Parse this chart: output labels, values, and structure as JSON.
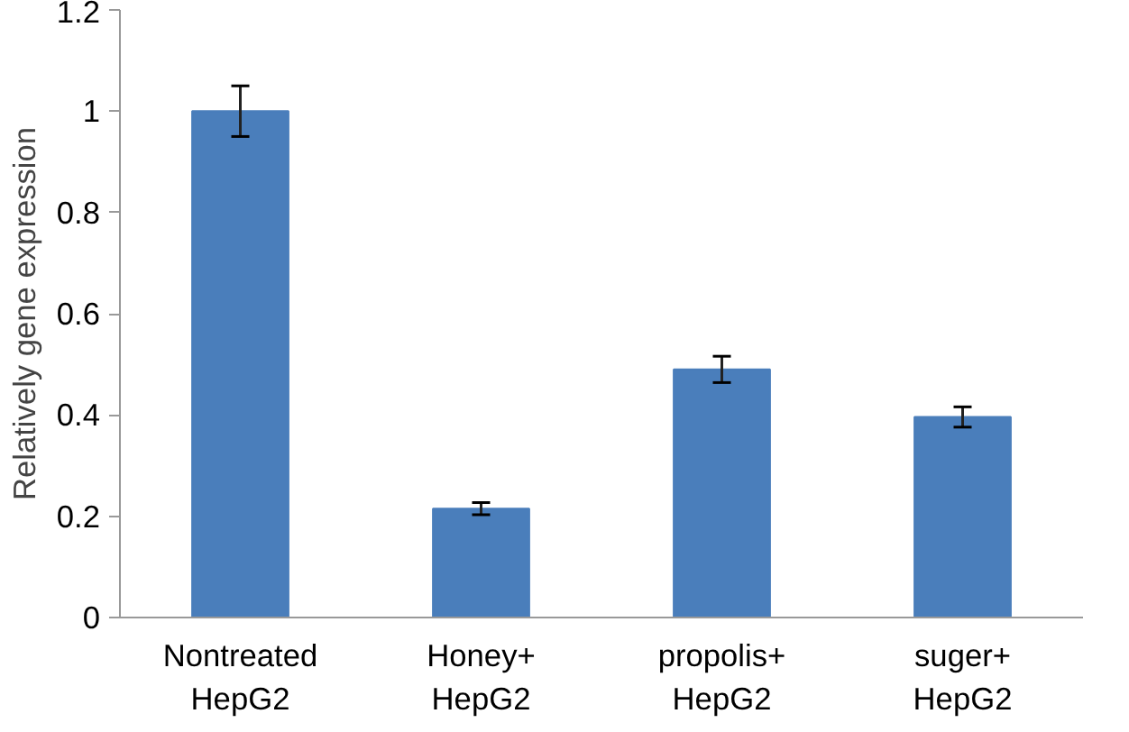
{
  "chart_data": {
    "type": "bar",
    "ylabel": "Relatively gene expression",
    "categories": [
      "Nontreated\nHepG2",
      "Honey+\nHepG2",
      "propolis+\nHepG2",
      "suger+\nHepG2"
    ],
    "values": [
      1.0,
      0.215,
      0.49,
      0.396
    ],
    "errors": [
      0.05,
      0.012,
      0.026,
      0.02
    ],
    "color": "#4a7ebb",
    "ylim": [
      0,
      1.2
    ],
    "yticks": [
      0,
      0.2,
      0.4,
      0.6,
      0.8,
      1,
      1.2
    ],
    "grid": false
  }
}
